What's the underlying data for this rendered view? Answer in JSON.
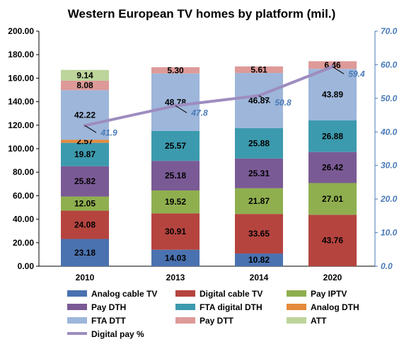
{
  "chart_data": {
    "type": "bar",
    "stacked": true,
    "title": "Western European TV homes by platform (mil.)",
    "categories": [
      "2010",
      "2013",
      "2014",
      "2020"
    ],
    "y_axis": {
      "ylim": [
        0,
        200
      ],
      "ticks": [
        "0.00",
        "20.00",
        "40.00",
        "60.00",
        "80.00",
        "100.00",
        "120.00",
        "140.00",
        "160.00",
        "180.00",
        "200.00"
      ]
    },
    "y2_axis": {
      "ylim": [
        0,
        70
      ],
      "ticks": [
        "0.0",
        "10.0",
        "20.0",
        "30.0",
        "40.0",
        "50.0",
        "60.0",
        "70.0"
      ]
    },
    "series": [
      {
        "name": "Analog cable TV",
        "color": "#4a72b0",
        "values": [
          23.18,
          14.03,
          10.82,
          null
        ]
      },
      {
        "name": "Digital cable TV",
        "color": "#b5443f",
        "values": [
          24.08,
          30.91,
          33.65,
          43.76
        ]
      },
      {
        "name": "Pay IPTV",
        "color": "#8faf4f",
        "values": [
          12.05,
          19.52,
          21.87,
          27.01
        ]
      },
      {
        "name": "Pay DTH",
        "color": "#7a5a95",
        "values": [
          25.82,
          25.18,
          25.31,
          26.42
        ]
      },
      {
        "name": "FTA digital DTH",
        "color": "#3c9aae",
        "values": [
          19.87,
          25.57,
          25.88,
          26.88
        ]
      },
      {
        "name": "Analog DTH",
        "color": "#e58a3c",
        "values": [
          2.57,
          null,
          null,
          null
        ]
      },
      {
        "name": "FTA DTT",
        "color": "#9db6da",
        "values": [
          42.22,
          48.78,
          46.87,
          43.89
        ]
      },
      {
        "name": "Pay DTT",
        "color": "#dd9a98",
        "values": [
          8.08,
          5.3,
          5.61,
          6.46
        ]
      },
      {
        "name": "ATT",
        "color": "#bdd49b",
        "values": [
          9.14,
          null,
          null,
          null
        ]
      }
    ],
    "line_series": {
      "name": "Digital pay %",
      "color": "#9d8cc0",
      "axis": "right",
      "values": [
        41.9,
        47.8,
        50.8,
        59.4
      ]
    },
    "legend_position": "bottom"
  }
}
